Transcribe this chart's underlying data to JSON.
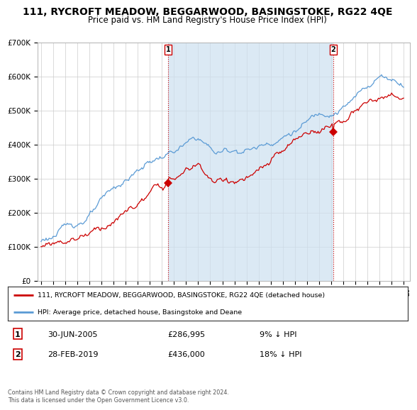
{
  "title": "111, RYCROFT MEADOW, BEGGARWOOD, BASINGSTOKE, RG22 4QE",
  "subtitle": "Price paid vs. HM Land Registry's House Price Index (HPI)",
  "title_fontsize": 10,
  "subtitle_fontsize": 8.5,
  "background_color": "#ffffff",
  "plot_bg_color": "#ffffff",
  "grid_color": "#cccccc",
  "hpi_color": "#5b9bd5",
  "hpi_fill_color": "#cde0f0",
  "price_color": "#cc0000",
  "marker1_year": 2005.5,
  "marker2_year": 2019.17,
  "marker1_label": "30-JUN-2005",
  "marker2_label": "28-FEB-2019",
  "marker1_price": 286995,
  "marker2_price": 436000,
  "marker1_pct": "9% ↓ HPI",
  "marker2_pct": "18% ↓ HPI",
  "legend_line1": "111, RYCROFT MEADOW, BEGGARWOOD, BASINGSTOKE, RG22 4QE (detached house)",
  "legend_line2": "HPI: Average price, detached house, Basingstoke and Deane",
  "footnote": "Contains HM Land Registry data © Crown copyright and database right 2024.\nThis data is licensed under the Open Government Licence v3.0.",
  "ylim": [
    0,
    700000
  ],
  "yticks": [
    0,
    100000,
    200000,
    300000,
    400000,
    500000,
    600000,
    700000
  ],
  "ytick_labels": [
    "£0",
    "£100K",
    "£200K",
    "£300K",
    "£400K",
    "£500K",
    "£600K",
    "£700K"
  ],
  "xstart": 1995,
  "xend": 2025
}
